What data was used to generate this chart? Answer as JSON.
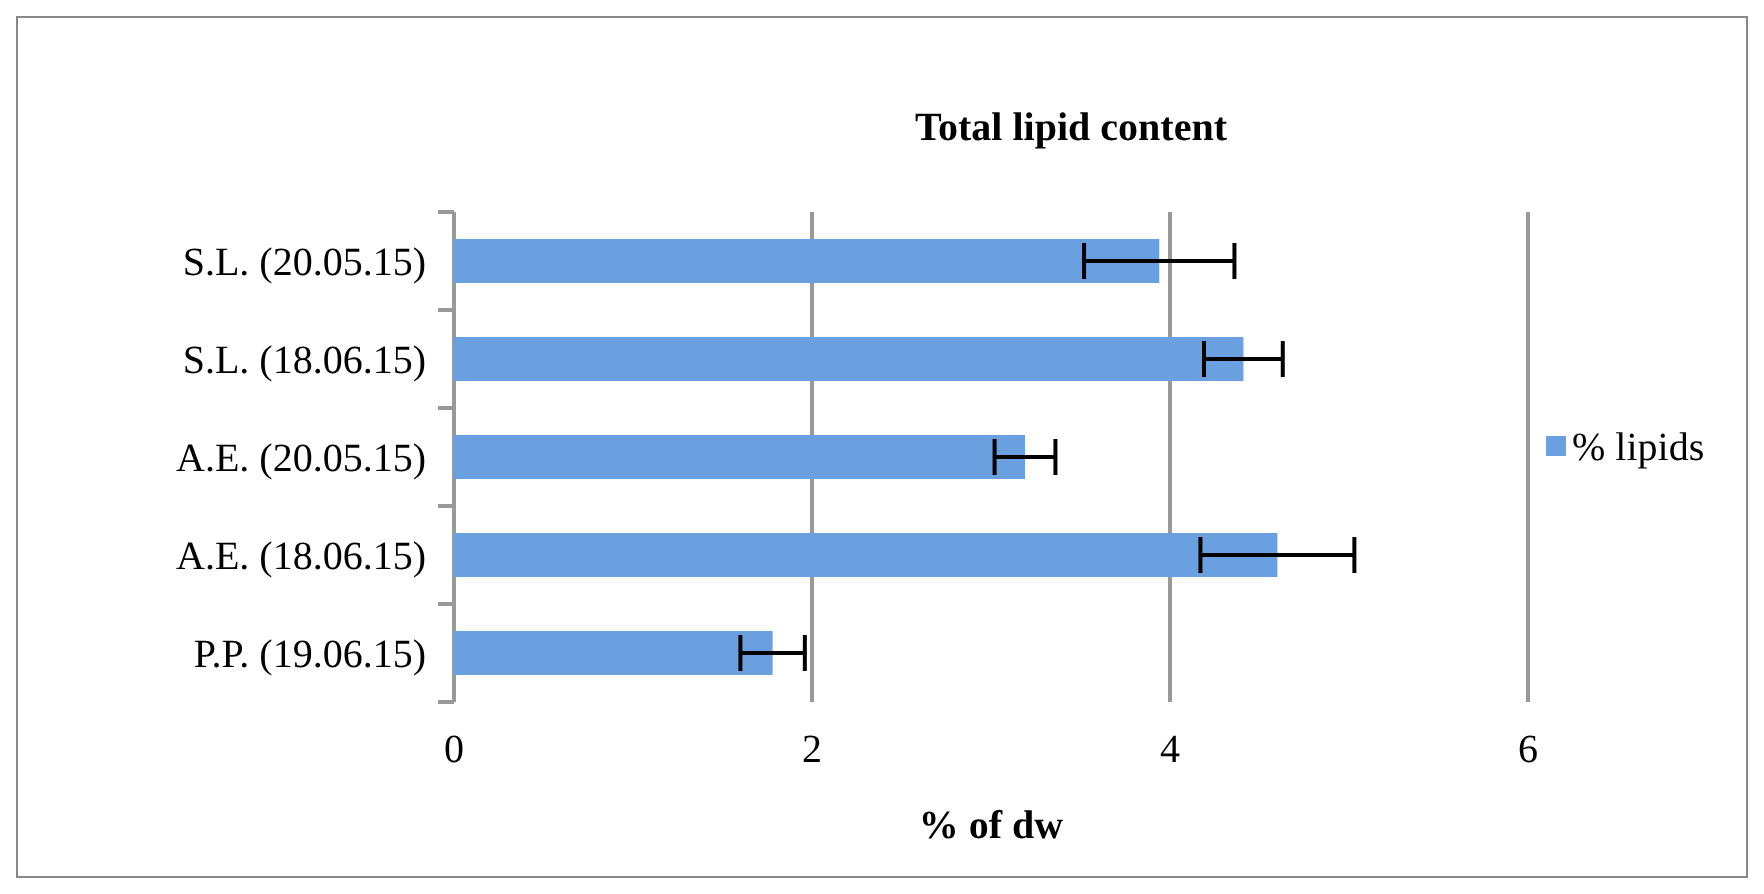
{
  "chart_data": {
    "type": "bar",
    "orientation": "horizontal",
    "title": "Total lipid content",
    "xlabel": "% of dw",
    "categories": [
      "S.L. (20.05.15)",
      "S.L. (18.06.15)",
      "A.E. (20.05.15)",
      "A.E. (18.06.15)",
      "P.P. (19.06.15)"
    ],
    "series": [
      {
        "name": "% lipids",
        "color": "#6a9fe0",
        "values": [
          3.94,
          4.41,
          3.19,
          4.6,
          1.78
        ],
        "errors": [
          0.42,
          0.22,
          0.17,
          0.43,
          0.18
        ]
      }
    ],
    "xlim": [
      0,
      6
    ],
    "xticks": [
      0,
      2,
      4,
      6
    ],
    "grid": "x",
    "legend": "right"
  }
}
